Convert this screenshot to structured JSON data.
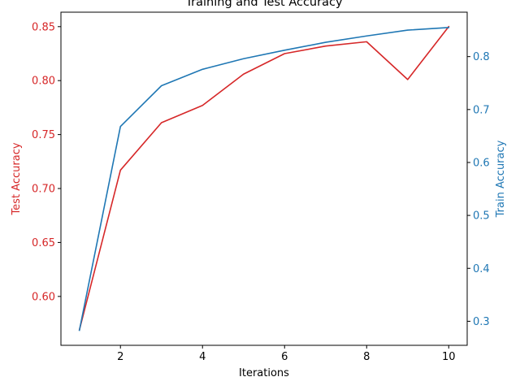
{
  "chart_data": {
    "type": "line",
    "title": "Training and Test Accuracy",
    "xlabel": "Iterations",
    "ylabel_left": "Test Accuracy",
    "ylabel_right": "Train Accuracy",
    "x": [
      1,
      2,
      3,
      4,
      5,
      6,
      7,
      8,
      9,
      10
    ],
    "xlim": [
      0.55,
      10.45
    ],
    "xticks": [
      2,
      4,
      6,
      8,
      10
    ],
    "series": [
      {
        "axis": "left",
        "color": "#d62728",
        "values": [
          0.569,
          0.717,
          0.761,
          0.777,
          0.806,
          0.825,
          0.832,
          0.836,
          0.801,
          0.85
        ]
      },
      {
        "axis": "right",
        "color": "#1f77b4",
        "values": [
          0.283,
          0.668,
          0.745,
          0.776,
          0.796,
          0.812,
          0.827,
          0.839,
          0.85,
          0.855
        ]
      }
    ],
    "ylim_left": [
      0.5547,
      0.8634
    ],
    "yticks_left": [
      0.6,
      0.65,
      0.7,
      0.75,
      0.8,
      0.85
    ],
    "ytick_labels_left": [
      "0.60",
      "0.65",
      "0.70",
      "0.75",
      "0.80",
      "0.85"
    ],
    "ylim_right": [
      0.2546,
      0.8839
    ],
    "yticks_right": [
      0.3,
      0.4,
      0.5,
      0.6,
      0.7,
      0.8
    ],
    "ytick_labels_right": [
      "0.3",
      "0.4",
      "0.5",
      "0.6",
      "0.7",
      "0.8"
    ],
    "grid": false,
    "left_axis_color": "#d62728",
    "right_axis_color": "#1f77b4"
  }
}
